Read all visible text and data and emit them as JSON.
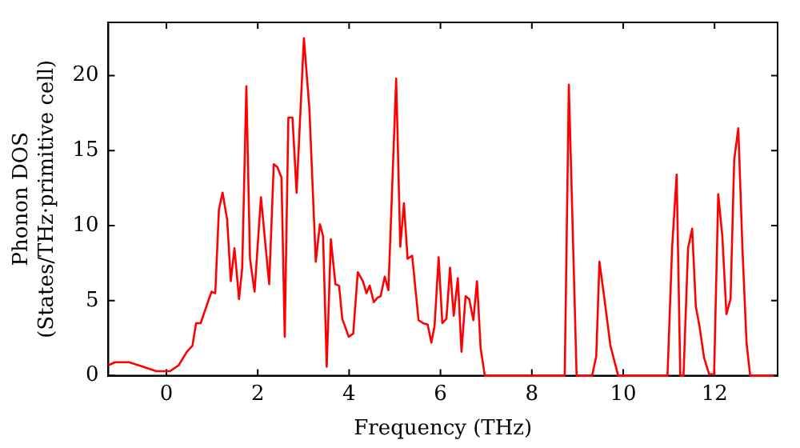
{
  "chart_data": {
    "type": "line",
    "xlabel": "Frequency (THz)",
    "ylabel": "Phonon DOS\n(States/THz·primitive cell)",
    "xlim": [
      -1.27,
      13.38
    ],
    "ylim": [
      0,
      23.55
    ],
    "xticks": [
      0,
      2,
      4,
      6,
      8,
      10,
      12
    ],
    "yticks": [
      0,
      5,
      10,
      15,
      20
    ],
    "grid": false,
    "legend": false,
    "marker": "none",
    "line_style": "solid",
    "series": [
      {
        "color": "#ff0000",
        "x": [
          -1.27,
          -1.12,
          -0.82,
          -0.52,
          -0.22,
          0.08,
          0.27,
          0.45,
          0.57,
          0.65,
          0.75,
          0.93,
          0.99,
          1.07,
          1.15,
          1.23,
          1.33,
          1.41,
          1.49,
          1.59,
          1.66,
          1.75,
          1.83,
          1.93,
          2.07,
          2.25,
          2.35,
          2.43,
          2.52,
          2.59,
          2.67,
          2.76,
          2.85,
          3.01,
          3.13,
          3.27,
          3.36,
          3.43,
          3.51,
          3.6,
          3.7,
          3.78,
          3.85,
          3.99,
          4.09,
          4.19,
          4.3,
          4.38,
          4.45,
          4.54,
          4.62,
          4.69,
          4.78,
          4.86,
          5.03,
          5.12,
          5.2,
          5.28,
          5.38,
          5.52,
          5.62,
          5.72,
          5.8,
          5.87,
          5.96,
          6.04,
          6.13,
          6.21,
          6.29,
          6.38,
          6.46,
          6.55,
          6.63,
          6.72,
          6.8,
          6.88,
          6.97,
          8.72,
          8.81,
          8.98,
          9.32,
          9.41,
          9.48,
          9.59,
          9.72,
          9.89,
          10.97,
          11.07,
          11.17,
          11.25,
          11.32,
          11.42,
          11.51,
          11.59,
          11.67,
          11.77,
          11.88,
          11.99,
          12.08,
          12.17,
          12.26,
          12.35,
          12.43,
          12.52,
          12.61,
          12.7,
          12.78,
          13.3
        ],
        "values": [
          0.7,
          0.9,
          0.9,
          0.6,
          0.3,
          0.3,
          0.7,
          1.6,
          2.0,
          3.5,
          3.5,
          5.1,
          5.6,
          5.5,
          11.1,
          12.2,
          10.4,
          6.3,
          8.5,
          5.1,
          7.2,
          19.3,
          7.8,
          5.6,
          11.9,
          6.1,
          14.1,
          13.9,
          13.2,
          2.6,
          17.2,
          17.2,
          12.2,
          22.5,
          17.8,
          7.6,
          10.1,
          9.3,
          0.6,
          9.1,
          6.1,
          6.0,
          3.8,
          2.6,
          2.8,
          6.9,
          6.3,
          5.5,
          6.0,
          4.9,
          5.2,
          5.3,
          6.6,
          5.7,
          19.8,
          8.6,
          11.5,
          7.8,
          8.0,
          3.7,
          3.5,
          3.4,
          2.2,
          3.3,
          7.9,
          3.5,
          3.8,
          7.2,
          4.0,
          6.5,
          1.6,
          5.3,
          5.1,
          3.7,
          6.3,
          1.8,
          0,
          0,
          19.4,
          0,
          0,
          1.3,
          7.6,
          5.1,
          2.0,
          0,
          0,
          8.5,
          13.4,
          0,
          0,
          8.5,
          9.8,
          4.6,
          3.3,
          1.2,
          0.1,
          0.1,
          12.1,
          9.3,
          4.1,
          5.1,
          14.4,
          16.5,
          8.5,
          2.2,
          0,
          0
        ]
      }
    ]
  }
}
